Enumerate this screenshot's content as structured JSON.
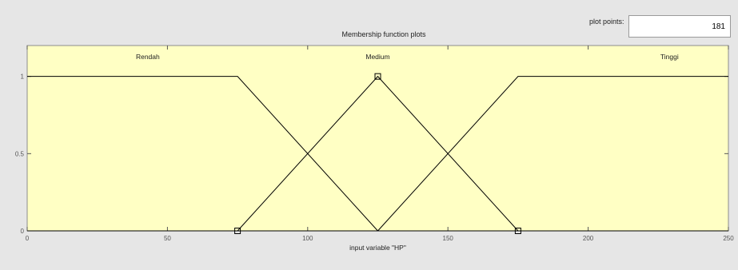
{
  "plot_points": {
    "label": "plot points:",
    "value": "181"
  },
  "chart_data": {
    "type": "line",
    "title": "Membership function plots",
    "xlabel": "input variable \"HP\"",
    "ylabel": "",
    "xlim": [
      0,
      250
    ],
    "ylim": [
      0,
      1.2
    ],
    "xticks": [
      0,
      50,
      100,
      150,
      200,
      250
    ],
    "yticks": [
      0,
      0.5,
      1
    ],
    "xtick_labels": [
      "0",
      "50",
      "100",
      "150",
      "200",
      "250"
    ],
    "ytick_labels": [
      "0",
      "0.5",
      "1"
    ],
    "background": "#ffffc4",
    "line_color": "#000000",
    "series": [
      {
        "name": "Rendah",
        "x": [
          0,
          75,
          125
        ],
        "y": [
          1,
          1,
          0
        ],
        "label_x": 43
      },
      {
        "name": "Medium",
        "x": [
          75,
          125,
          175
        ],
        "y": [
          0,
          1,
          0
        ],
        "label_x": 125
      },
      {
        "name": "Tinggi",
        "x": [
          125,
          175,
          250
        ],
        "y": [
          0,
          1,
          1
        ],
        "label_x": 229
      }
    ],
    "markers": [
      {
        "x": 75,
        "y": 0
      },
      {
        "x": 125,
        "y": 1
      },
      {
        "x": 175,
        "y": 0
      }
    ]
  }
}
